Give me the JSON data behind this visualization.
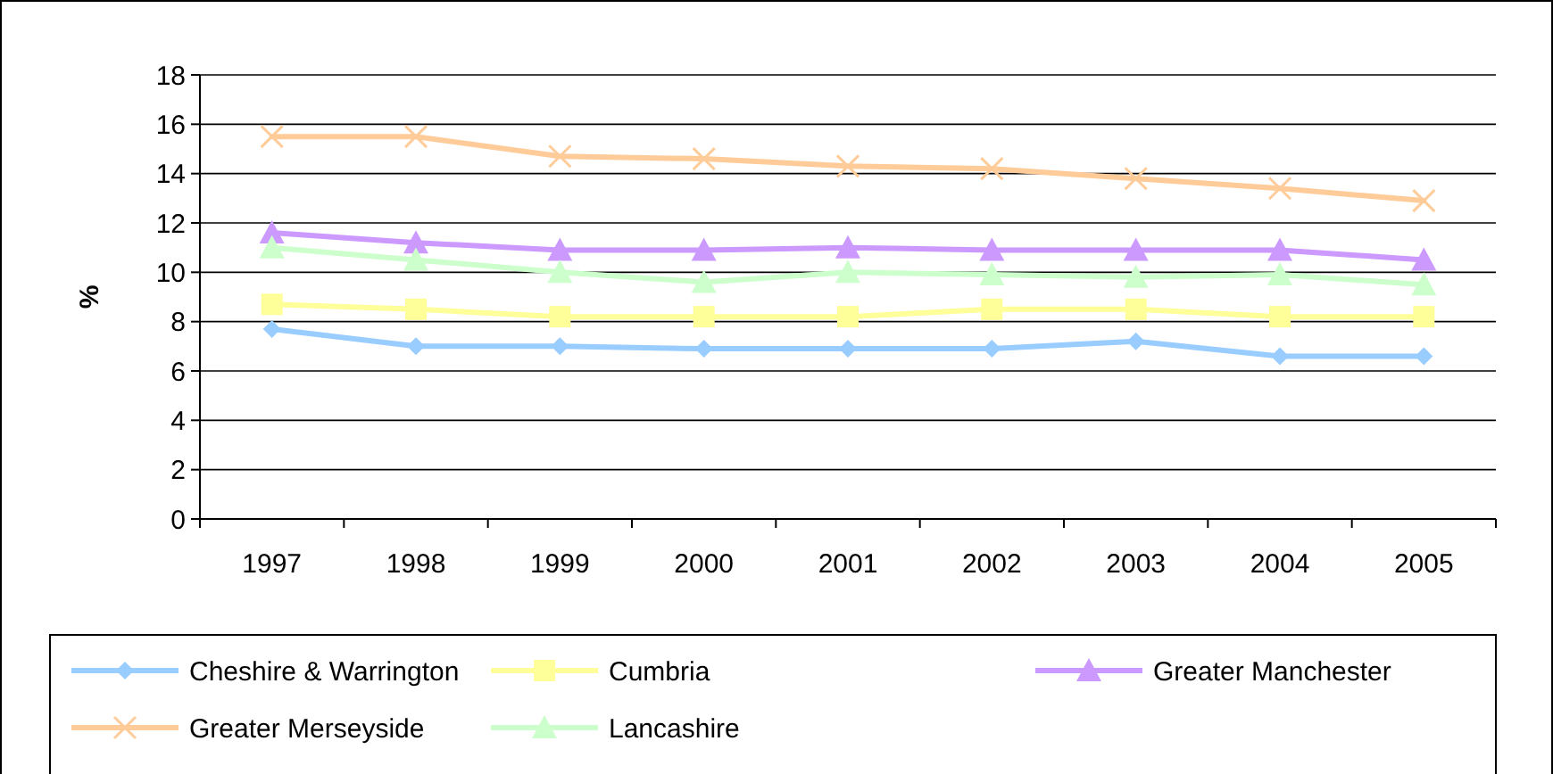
{
  "chart_data": {
    "type": "line",
    "ylabel": "%",
    "categories": [
      "1997",
      "1998",
      "1999",
      "2000",
      "2001",
      "2002",
      "2003",
      "2004",
      "2005"
    ],
    "series": [
      {
        "name": "Cheshire & Warrington",
        "color": "#99ccff",
        "marker": "diamond",
        "values": [
          7.7,
          7.0,
          7.0,
          6.9,
          6.9,
          6.9,
          7.2,
          6.6,
          6.6
        ]
      },
      {
        "name": "Cumbria",
        "color": "#ffff99",
        "marker": "square",
        "values": [
          8.7,
          8.5,
          8.2,
          8.2,
          8.2,
          8.5,
          8.5,
          8.2,
          8.2
        ]
      },
      {
        "name": "Greater Manchester",
        "color": "#cc99ff",
        "marker": "triangle",
        "values": [
          11.6,
          11.2,
          10.9,
          10.9,
          11.0,
          10.9,
          10.9,
          10.9,
          10.5
        ]
      },
      {
        "name": "Greater Merseyside",
        "color": "#ffcc99",
        "marker": "cross",
        "values": [
          15.5,
          15.5,
          14.7,
          14.6,
          14.3,
          14.2,
          13.8,
          13.4,
          12.9
        ]
      },
      {
        "name": "Lancashire",
        "color": "#ccffcc",
        "marker": "triangle",
        "values": [
          11.0,
          10.5,
          10.0,
          9.6,
          10.0,
          9.9,
          9.8,
          9.9,
          9.5
        ]
      }
    ],
    "ylim": [
      0,
      18
    ],
    "yticks": [
      0,
      2,
      4,
      6,
      8,
      10,
      12,
      14,
      16,
      18
    ],
    "grid": "y",
    "legend": "bottom"
  }
}
